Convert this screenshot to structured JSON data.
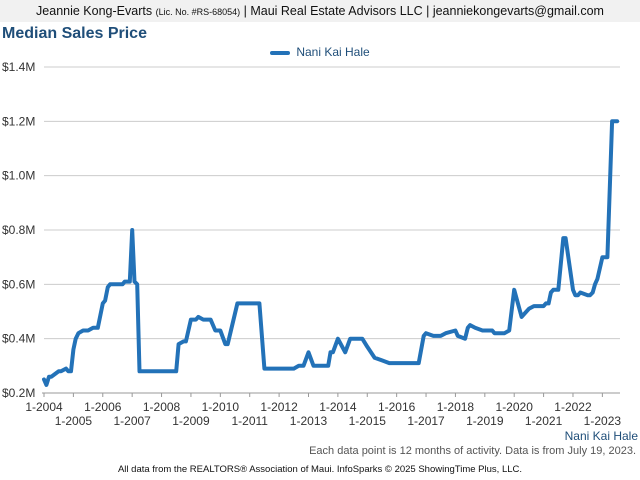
{
  "header": {
    "name": "Jeannie Kong-Evarts",
    "license": "(Lic. No. #RS-68054)",
    "rest": "| Maui Real Estate Advisors LLC | jeanniekongevarts@gmail.com"
  },
  "page_title": "Median Sales Price",
  "legend_label": "Nani Kai Hale",
  "series_caption": "Nani Kai Hale",
  "note": "Each data point is 12 months of activity. Data is from July 19, 2023.",
  "footer": "All data from the REALTORS® Association of Maui. InfoSparks © 2025 ShowingTime Plus, LLC.",
  "colors": {
    "line": "#2372b8",
    "title": "#1f4e79",
    "grid": "#cccccc"
  },
  "chart_data": {
    "type": "line",
    "title": "Median Sales Price",
    "xlabel": "",
    "ylabel": "",
    "ylim": [
      0.2,
      1.4
    ],
    "y_unit": "$M",
    "yticks": [
      0.2,
      0.4,
      0.6,
      0.8,
      1.0,
      1.2,
      1.4
    ],
    "ytick_labels": [
      "$0.2M",
      "$0.4M",
      "$0.6M",
      "$0.8M",
      "$1.0M",
      "$1.2M",
      "$1.4M"
    ],
    "xlim": [
      2004.0,
      2023.6
    ],
    "xticks_top": [
      "1-2004",
      "1-2006",
      "1-2008",
      "1-2010",
      "1-2012",
      "1-2014",
      "1-2016",
      "1-2018",
      "1-2020",
      "1-2022"
    ],
    "xticks_bottom": [
      "1-2005",
      "1-2007",
      "1-2009",
      "1-2011",
      "1-2013",
      "1-2015",
      "1-2017",
      "1-2019",
      "1-2021",
      "1-2023"
    ],
    "grid": true,
    "legend_position": "top-center",
    "series": [
      {
        "name": "Nani Kai Hale",
        "x": [
          2004.0,
          2004.08,
          2004.17,
          2004.25,
          2004.5,
          2004.58,
          2004.75,
          2004.83,
          2004.92,
          2005.0,
          2005.08,
          2005.17,
          2005.33,
          2005.5,
          2005.67,
          2005.83,
          2006.0,
          2006.08,
          2006.17,
          2006.25,
          2006.5,
          2006.67,
          2006.75,
          2006.92,
          2007.0,
          2007.08,
          2007.17,
          2007.25,
          2007.5,
          2007.75,
          2008.0,
          2008.08,
          2008.33,
          2008.5,
          2008.58,
          2008.75,
          2008.83,
          2009.0,
          2009.17,
          2009.25,
          2009.42,
          2009.58,
          2009.67,
          2009.83,
          2010.0,
          2010.17,
          2010.25,
          2010.58,
          2011.0,
          2011.17,
          2011.33,
          2011.5,
          2011.67,
          2011.83,
          2012.0,
          2012.25,
          2012.5,
          2012.67,
          2012.75,
          2012.83,
          2013.0,
          2013.17,
          2013.33,
          2013.42,
          2013.5,
          2013.58,
          2013.67,
          2013.75,
          2013.83,
          2014.0,
          2014.25,
          2014.42,
          2014.5,
          2014.67,
          2014.83,
          2015.0,
          2015.25,
          2015.5,
          2015.75,
          2016.0,
          2016.17,
          2016.25,
          2016.33,
          2016.5,
          2016.75,
          2016.92,
          2017.0,
          2017.25,
          2017.33,
          2017.42,
          2017.5,
          2017.67,
          2018.0,
          2018.08,
          2018.33,
          2018.42,
          2018.5,
          2018.67,
          2018.92,
          2019.08,
          2019.17,
          2019.25,
          2019.33,
          2019.5,
          2019.67,
          2019.83,
          2020.0,
          2020.25,
          2020.5,
          2020.67,
          2020.75,
          2021.0,
          2021.08,
          2021.17,
          2021.25,
          2021.33,
          2021.5,
          2021.67,
          2021.75,
          2022.0,
          2022.08,
          2022.17,
          2022.25,
          2022.5,
          2022.58,
          2022.67,
          2022.75,
          2022.83,
          2023.0,
          2023.08,
          2023.17,
          2023.33,
          2023.5
        ],
        "values": [
          0.25,
          0.23,
          0.26,
          0.26,
          0.28,
          0.28,
          0.29,
          0.28,
          0.28,
          0.36,
          0.4,
          0.42,
          0.43,
          0.43,
          0.44,
          0.44,
          0.53,
          0.54,
          0.59,
          0.6,
          0.6,
          0.6,
          0.61,
          0.61,
          0.8,
          0.61,
          0.6,
          0.28,
          0.28,
          0.28,
          0.28,
          0.28,
          0.28,
          0.28,
          0.38,
          0.39,
          0.39,
          0.47,
          0.47,
          0.48,
          0.47,
          0.47,
          0.47,
          0.43,
          0.43,
          0.38,
          0.38,
          0.53,
          0.53,
          0.53,
          0.53,
          0.29,
          0.29,
          0.29,
          0.29,
          0.29,
          0.29,
          0.3,
          0.3,
          0.3,
          0.35,
          0.3,
          0.3,
          0.3,
          0.3,
          0.3,
          0.3,
          0.35,
          0.35,
          0.4,
          0.35,
          0.4,
          0.4,
          0.4,
          0.4,
          0.37,
          0.33,
          0.32,
          0.31,
          0.31,
          0.31,
          0.31,
          0.31,
          0.31,
          0.31,
          0.41,
          0.42,
          0.41,
          0.41,
          0.41,
          0.41,
          0.42,
          0.43,
          0.41,
          0.4,
          0.44,
          0.45,
          0.44,
          0.43,
          0.43,
          0.43,
          0.43,
          0.42,
          0.42,
          0.42,
          0.43,
          0.58,
          0.48,
          0.51,
          0.52,
          0.52,
          0.52,
          0.53,
          0.53,
          0.57,
          0.58,
          0.58,
          0.77,
          0.77,
          0.58,
          0.56,
          0.56,
          0.57,
          0.56,
          0.56,
          0.57,
          0.6,
          0.62,
          0.7,
          0.7,
          0.7,
          1.2,
          1.2
        ]
      }
    ]
  }
}
